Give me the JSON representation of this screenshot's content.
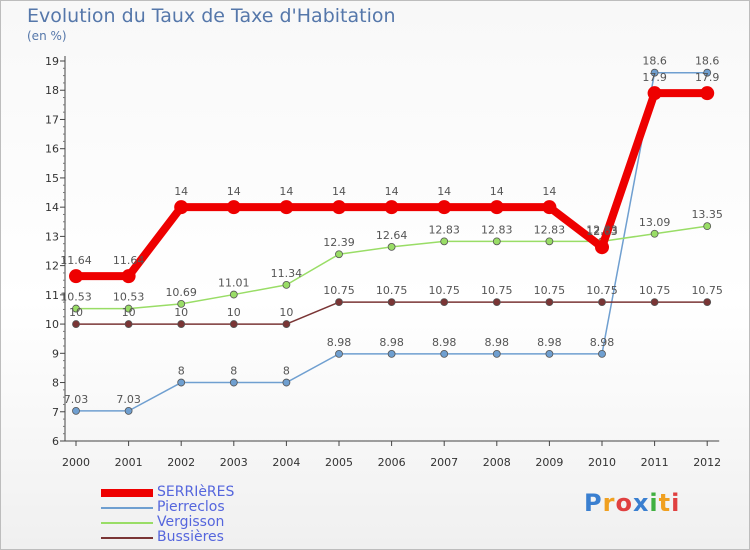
{
  "title": "Evolution du Taux de Taxe d'Habitation",
  "unit": "(en %)",
  "logo": {
    "letters": [
      "P",
      "r",
      "o",
      "x",
      "i",
      "t",
      "i"
    ],
    "colors": [
      "#3a7fd0",
      "#f0a020",
      "#e04040",
      "#3a7fd0",
      "#40b040",
      "#f0a020",
      "#e04040"
    ]
  },
  "chart_data": {
    "type": "line",
    "title": "Evolution du Taux de Taxe d'Habitation",
    "ylabel": "(en %)",
    "xlabel": "",
    "x": [
      "2000",
      "2001",
      "2002",
      "2003",
      "2004",
      "2005",
      "2006",
      "2007",
      "2008",
      "2009",
      "2010",
      "2011",
      "2012"
    ],
    "ylim": [
      6,
      19
    ],
    "yticks": [
      6,
      7,
      8,
      9,
      10,
      11,
      12,
      13,
      14,
      15,
      16,
      17,
      18,
      19
    ],
    "grid": false,
    "legend_position": "bottom-left",
    "series": [
      {
        "name": "SERRIèRES",
        "color": "#ee0000",
        "width": 8,
        "marker": 7,
        "values": [
          11.64,
          11.64,
          14,
          14,
          14,
          14,
          14,
          14,
          14,
          14,
          12.63,
          17.9,
          17.9
        ],
        "labels": [
          "11.64",
          "11.64",
          "14",
          "14",
          "14",
          "14",
          "14",
          "14",
          "14",
          "14",
          "12.63",
          "17.9",
          "17.9"
        ]
      },
      {
        "name": "Pierreclos",
        "color": "#6f9fd0",
        "width": 1.5,
        "marker": 3.5,
        "values": [
          7.03,
          7.03,
          8,
          8,
          8,
          8.98,
          8.98,
          8.98,
          8.98,
          8.98,
          8.98,
          18.6,
          18.6
        ],
        "labels": [
          "7.03",
          "7.03",
          "8",
          "8",
          "8",
          "8.98",
          "8.98",
          "8.98",
          "8.98",
          "8.98",
          "8.98",
          "18.6",
          "18.6"
        ]
      },
      {
        "name": "Vergisson",
        "color": "#99dd66",
        "width": 1.5,
        "marker": 3.5,
        "values": [
          10.53,
          10.53,
          10.69,
          11.01,
          11.34,
          12.39,
          12.64,
          12.83,
          12.83,
          12.83,
          12.83,
          13.09,
          13.35
        ],
        "labels": [
          "10.53",
          "10.53",
          "10.69",
          "11.01",
          "11.34",
          "12.39",
          "12.64",
          "12.83",
          "12.83",
          "12.83",
          "12.83",
          "13.09",
          "13.35"
        ]
      },
      {
        "name": "Bussières",
        "color": "#7a3535",
        "width": 1.5,
        "marker": 3.5,
        "values": [
          10,
          10,
          10,
          10,
          10,
          10.75,
          10.75,
          10.75,
          10.75,
          10.75,
          10.75,
          10.75,
          10.75
        ],
        "labels": [
          "10",
          "10",
          "10",
          "10",
          "10",
          "10.75",
          "10.75",
          "10.75",
          "10.75",
          "10.75",
          "10.75",
          "10.75",
          "10.75"
        ]
      }
    ]
  }
}
